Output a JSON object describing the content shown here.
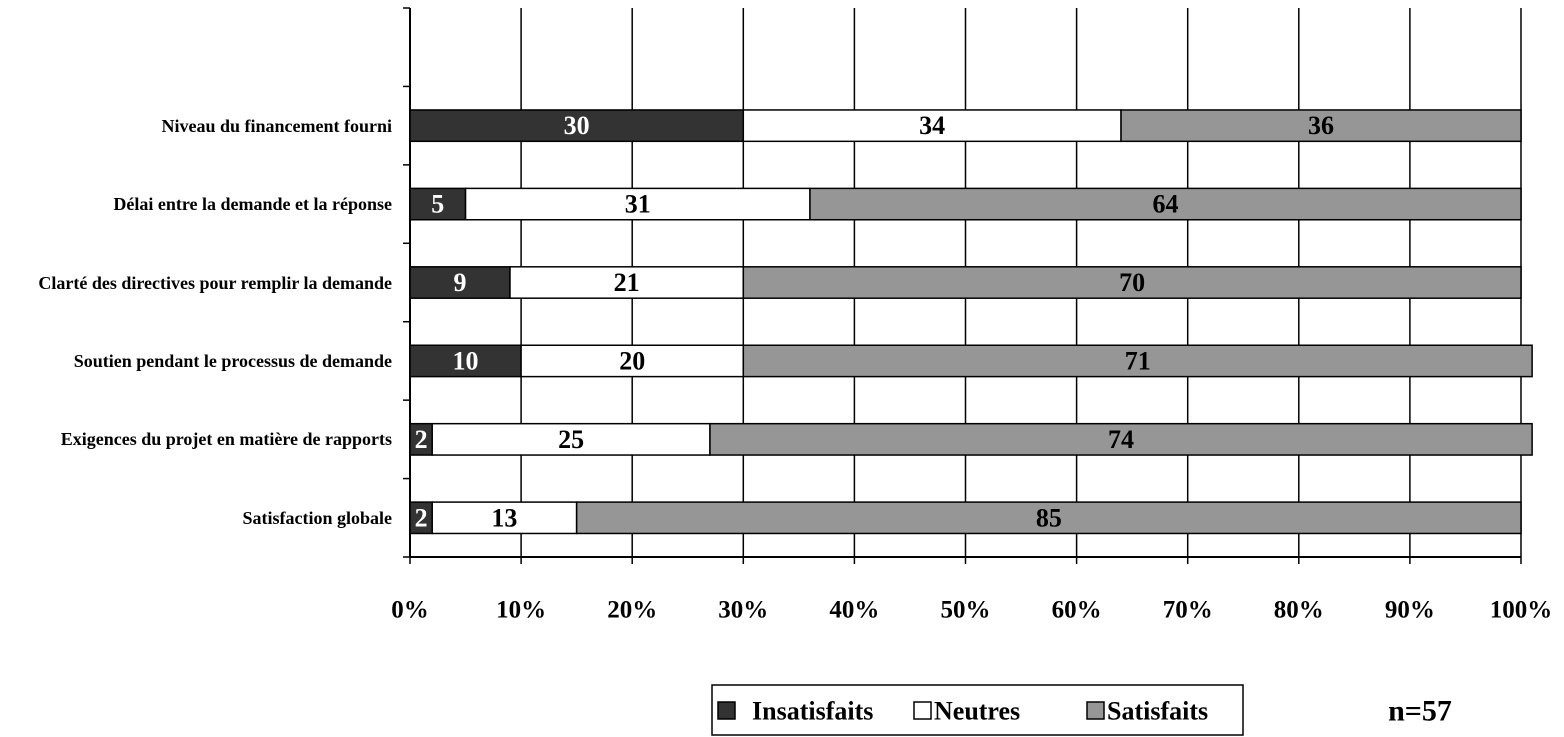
{
  "chart_data": {
    "type": "bar",
    "orientation": "horizontal",
    "stacked": true,
    "categories": [
      null,
      "Niveau du financement fourni",
      "Délai entre la demande et la réponse",
      "Clarté des directives pour remplir la demande",
      "Soutien pendant le processus de demande",
      "Exigences du projet en matière de rapports",
      "Satisfaction globale"
    ],
    "series": [
      {
        "name": "Insatisfaits",
        "color": "#333333",
        "label_color": "#ffffff",
        "values": [
          null,
          30,
          5,
          9,
          10,
          2,
          2
        ]
      },
      {
        "name": "Neutres",
        "color": "#ffffff",
        "label_color": "#000000",
        "values": [
          null,
          34,
          31,
          21,
          20,
          25,
          13
        ]
      },
      {
        "name": "Satisfaits",
        "color": "#969696",
        "label_color": "#000000",
        "values": [
          null,
          36,
          64,
          70,
          71,
          74,
          85
        ]
      }
    ],
    "xlim": [
      0,
      100
    ],
    "xticks": [
      {
        "value": 0,
        "label": "0%"
      },
      {
        "value": 10,
        "label": "10%"
      },
      {
        "value": 20,
        "label": "20%"
      },
      {
        "value": 30,
        "label": "30%"
      },
      {
        "value": 40,
        "label": "40%"
      },
      {
        "value": 50,
        "label": "50%"
      },
      {
        "value": 60,
        "label": "60%"
      },
      {
        "value": 70,
        "label": "70%"
      },
      {
        "value": 80,
        "label": "80%"
      },
      {
        "value": 90,
        "label": "90%"
      },
      {
        "value": 100,
        "label": "100%"
      }
    ],
    "grid": true,
    "legend": "bottom",
    "annotation": "n=57"
  }
}
